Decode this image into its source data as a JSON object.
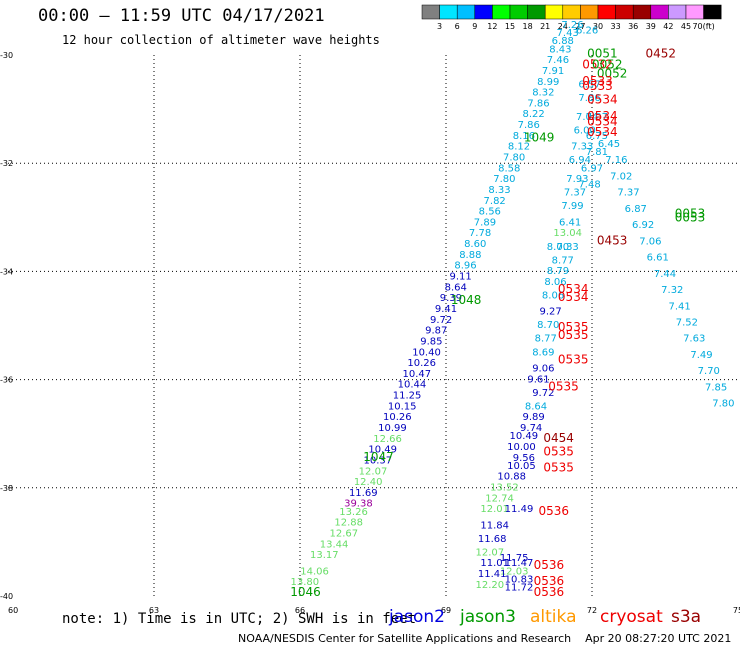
{
  "header": {
    "title": "00:00 – 11:59 UTC 04/17/2021",
    "subtitle": "12 hour collection of altimeter wave heights"
  },
  "colorbar": {
    "unit_label": "(ft)",
    "ticks": [
      "3",
      "6",
      "9",
      "12",
      "15",
      "18",
      "21",
      "24",
      "27",
      "30",
      "33",
      "36",
      "39",
      "42",
      "45",
      "70"
    ],
    "colors": [
      "#808080",
      "#00e5ff",
      "#00bfff",
      "#0000ff",
      "#00ff00",
      "#00cc00",
      "#009900",
      "#ffff00",
      "#ffcc00",
      "#ff9900",
      "#ff0000",
      "#cc0000",
      "#990000",
      "#cc00cc",
      "#cc99ff",
      "#ff99ff",
      "#000000"
    ]
  },
  "map": {
    "lon_range": [
      60,
      75
    ],
    "lat_range": [
      -40,
      -30
    ],
    "x_ticks": [
      "60",
      "63",
      "66",
      "69",
      "72",
      "75"
    ],
    "y_ticks": [
      "-30",
      "-32",
      "-34",
      "-36",
      "-38",
      "-40"
    ],
    "observations": [
      {
        "lon": 66.1,
        "lat": -39.8,
        "text": "13.80",
        "color": "#66dd66"
      },
      {
        "lon": 66.3,
        "lat": -39.6,
        "text": "14.06",
        "color": "#66dd66"
      },
      {
        "lon": 66.5,
        "lat": -39.3,
        "text": "13.17",
        "color": "#66dd66"
      },
      {
        "lon": 66.7,
        "lat": -39.1,
        "text": "13.44",
        "color": "#66dd66"
      },
      {
        "lon": 66.9,
        "lat": -38.9,
        "text": "12.67",
        "color": "#66dd66"
      },
      {
        "lon": 67.0,
        "lat": -38.7,
        "text": "12.88",
        "color": "#66dd66"
      },
      {
        "lon": 67.1,
        "lat": -38.5,
        "text": "13.26",
        "color": "#66dd66"
      },
      {
        "lon": 67.2,
        "lat": -38.35,
        "text": "39.38",
        "color": "#990099"
      },
      {
        "lon": 67.3,
        "lat": -38.15,
        "text": "11.69",
        "color": "#0000bb"
      },
      {
        "lon": 67.4,
        "lat": -37.95,
        "text": "12.40",
        "color": "#66dd66"
      },
      {
        "lon": 67.5,
        "lat": -37.75,
        "text": "12.07",
        "color": "#66dd66"
      },
      {
        "lon": 67.6,
        "lat": -37.55,
        "text": "10.37",
        "color": "#0000bb"
      },
      {
        "lon": 67.7,
        "lat": -37.35,
        "text": "10.49",
        "color": "#0000bb"
      },
      {
        "lon": 67.8,
        "lat": -37.15,
        "text": "12.66",
        "color": "#66dd66"
      },
      {
        "lon": 67.9,
        "lat": -36.95,
        "text": "10.99",
        "color": "#0000bb"
      },
      {
        "lon": 68.0,
        "lat": -36.75,
        "text": "10.26",
        "color": "#0000bb"
      },
      {
        "lon": 68.1,
        "lat": -36.55,
        "text": "10.15",
        "color": "#0000bb"
      },
      {
        "lon": 68.2,
        "lat": -36.35,
        "text": "11.25",
        "color": "#0000bb"
      },
      {
        "lon": 68.3,
        "lat": -36.15,
        "text": "10.44",
        "color": "#0000bb"
      },
      {
        "lon": 68.4,
        "lat": -35.95,
        "text": "10.47",
        "color": "#0000bb"
      },
      {
        "lon": 68.5,
        "lat": -35.75,
        "text": "10.26",
        "color": "#0000bb"
      },
      {
        "lon": 68.6,
        "lat": -35.55,
        "text": "10.40",
        "color": "#0000bb"
      },
      {
        "lon": 68.7,
        "lat": -35.35,
        "text": "9.85",
        "color": "#0000bb"
      },
      {
        "lon": 68.8,
        "lat": -35.15,
        "text": "9.87",
        "color": "#0000bb"
      },
      {
        "lon": 68.9,
        "lat": -34.95,
        "text": "9.72",
        "color": "#0000bb"
      },
      {
        "lon": 69.0,
        "lat": -34.75,
        "text": "9.41",
        "color": "#0000bb"
      },
      {
        "lon": 69.1,
        "lat": -34.55,
        "text": "9.39",
        "color": "#0000bb"
      },
      {
        "lon": 69.2,
        "lat": -34.35,
        "text": "8.64",
        "color": "#0000bb"
      },
      {
        "lon": 69.3,
        "lat": -34.15,
        "text": "9.11",
        "color": "#0000bb"
      },
      {
        "lon": 69.4,
        "lat": -33.95,
        "text": "8.96",
        "color": "#00aadd"
      },
      {
        "lon": 69.5,
        "lat": -33.75,
        "text": "8.88",
        "color": "#00aadd"
      },
      {
        "lon": 69.6,
        "lat": -33.55,
        "text": "8.60",
        "color": "#00aadd"
      },
      {
        "lon": 69.7,
        "lat": -33.35,
        "text": "7.78",
        "color": "#00aadd"
      },
      {
        "lon": 69.8,
        "lat": -33.15,
        "text": "7.89",
        "color": "#00aadd"
      },
      {
        "lon": 69.9,
        "lat": -32.95,
        "text": "8.56",
        "color": "#00aadd"
      },
      {
        "lon": 70.0,
        "lat": -32.75,
        "text": "7.82",
        "color": "#00aadd"
      },
      {
        "lon": 70.1,
        "lat": -32.55,
        "text": "8.33",
        "color": "#00aadd"
      },
      {
        "lon": 70.2,
        "lat": -32.35,
        "text": "7.80",
        "color": "#00aadd"
      },
      {
        "lon": 70.3,
        "lat": -32.15,
        "text": "8.58",
        "color": "#00aadd"
      },
      {
        "lon": 70.4,
        "lat": -31.95,
        "text": "7.80",
        "color": "#00aadd"
      },
      {
        "lon": 70.5,
        "lat": -31.75,
        "text": "8.12",
        "color": "#00aadd"
      },
      {
        "lon": 70.6,
        "lat": -31.55,
        "text": "8.16",
        "color": "#00aadd"
      },
      {
        "lon": 70.7,
        "lat": -31.35,
        "text": "7.86",
        "color": "#00aadd"
      },
      {
        "lon": 70.8,
        "lat": -31.15,
        "text": "8.22",
        "color": "#00aadd"
      },
      {
        "lon": 70.9,
        "lat": -30.95,
        "text": "7.86",
        "color": "#00aadd"
      },
      {
        "lon": 71.0,
        "lat": -30.75,
        "text": "8.32",
        "color": "#00aadd"
      },
      {
        "lon": 71.1,
        "lat": -30.55,
        "text": "8.99",
        "color": "#00aadd"
      },
      {
        "lon": 71.2,
        "lat": -30.35,
        "text": "7.91",
        "color": "#00aadd"
      },
      {
        "lon": 71.3,
        "lat": -30.15,
        "text": "7.46",
        "color": "#00aadd"
      },
      {
        "lon": 71.35,
        "lat": -29.95,
        "text": "8.43",
        "color": "#00aadd"
      },
      {
        "lon": 71.4,
        "lat": -29.8,
        "text": "6.88",
        "color": "#00aadd"
      },
      {
        "lon": 71.5,
        "lat": -29.65,
        "text": "7.43",
        "color": "#00aadd"
      },
      {
        "lon": 71.6,
        "lat": -29.5,
        "text": "7.26",
        "color": "#00aadd"
      },
      {
        "lon": 71.9,
        "lat": -29.6,
        "text": "6.26",
        "color": "#00aadd"
      },
      {
        "lon": 71.95,
        "lat": -30.6,
        "text": "6.57",
        "color": "#00aadd"
      },
      {
        "lon": 71.95,
        "lat": -30.85,
        "text": "7.86",
        "color": "#00aadd"
      },
      {
        "lon": 71.9,
        "lat": -31.2,
        "text": "7.04",
        "color": "#00aadd"
      },
      {
        "lon": 71.85,
        "lat": -31.45,
        "text": "6.00",
        "color": "#00aadd"
      },
      {
        "lon": 71.8,
        "lat": -31.75,
        "text": "7.33",
        "color": "#00aadd"
      },
      {
        "lon": 71.75,
        "lat": -32.0,
        "text": "6.94",
        "color": "#00aadd"
      },
      {
        "lon": 71.7,
        "lat": -32.35,
        "text": "7.93",
        "color": "#00aadd"
      },
      {
        "lon": 71.65,
        "lat": -32.6,
        "text": "7.37",
        "color": "#00aadd"
      },
      {
        "lon": 71.6,
        "lat": -32.85,
        "text": "7.99",
        "color": "#00aadd"
      },
      {
        "lon": 71.55,
        "lat": -33.15,
        "text": "6.41",
        "color": "#00aadd"
      },
      {
        "lon": 71.5,
        "lat": -33.35,
        "text": "13.04",
        "color": "#66dd66"
      },
      {
        "lon": 71.3,
        "lat": -33.6,
        "text": "8.00",
        "color": "#00aadd"
      },
      {
        "lon": 71.5,
        "lat": -33.6,
        "text": "7.33",
        "color": "#00aadd"
      },
      {
        "lon": 71.4,
        "lat": -33.85,
        "text": "8.77",
        "color": "#00aadd"
      },
      {
        "lon": 71.3,
        "lat": -34.05,
        "text": "8.79",
        "color": "#00aadd"
      },
      {
        "lon": 71.25,
        "lat": -34.25,
        "text": "8.06",
        "color": "#00aadd"
      },
      {
        "lon": 71.2,
        "lat": -34.5,
        "text": "8.06",
        "color": "#00aadd"
      },
      {
        "lon": 71.15,
        "lat": -34.8,
        "text": "9.27",
        "color": "#0000bb"
      },
      {
        "lon": 71.1,
        "lat": -35.05,
        "text": "8.70",
        "color": "#00aadd"
      },
      {
        "lon": 71.05,
        "lat": -35.3,
        "text": "8.77",
        "color": "#00aadd"
      },
      {
        "lon": 71.0,
        "lat": -35.55,
        "text": "8.69",
        "color": "#00aadd"
      },
      {
        "lon": 71.0,
        "lat": -35.85,
        "text": "9.06",
        "color": "#0000bb"
      },
      {
        "lon": 70.9,
        "lat": -36.05,
        "text": "9.61",
        "color": "#0000bb"
      },
      {
        "lon": 71.0,
        "lat": -36.3,
        "text": "9.72",
        "color": "#0000bb"
      },
      {
        "lon": 70.85,
        "lat": -36.55,
        "text": "8.64",
        "color": "#00aadd"
      },
      {
        "lon": 70.8,
        "lat": -36.75,
        "text": "9.89",
        "color": "#0000bb"
      },
      {
        "lon": 70.75,
        "lat": -36.95,
        "text": "9.74",
        "color": "#0000bb"
      },
      {
        "lon": 70.6,
        "lat": -37.1,
        "text": "10.49",
        "color": "#0000bb"
      },
      {
        "lon": 70.55,
        "lat": -37.3,
        "text": "10.00",
        "color": "#0000bb"
      },
      {
        "lon": 70.6,
        "lat": -37.5,
        "text": "9.56",
        "color": "#0000bb"
      },
      {
        "lon": 70.55,
        "lat": -37.65,
        "text": "10.05",
        "color": "#0000bb"
      },
      {
        "lon": 70.35,
        "lat": -37.85,
        "text": "10.88",
        "color": "#0000bb"
      },
      {
        "lon": 70.2,
        "lat": -38.05,
        "text": "13.52",
        "color": "#66dd66"
      },
      {
        "lon": 70.1,
        "lat": -38.25,
        "text": "12.74",
        "color": "#66dd66"
      },
      {
        "lon": 70.0,
        "lat": -38.45,
        "text": "12.01",
        "color": "#66dd66"
      },
      {
        "lon": 70.5,
        "lat": -38.45,
        "text": "11.49",
        "color": "#0000bb"
      },
      {
        "lon": 70.0,
        "lat": -38.75,
        "text": "11.84",
        "color": "#0000bb"
      },
      {
        "lon": 69.95,
        "lat": -39.0,
        "text": "11.68",
        "color": "#0000bb"
      },
      {
        "lon": 69.9,
        "lat": -39.25,
        "text": "12.07",
        "color": "#66dd66"
      },
      {
        "lon": 70.4,
        "lat": -39.35,
        "text": "11.75",
        "color": "#0000bb"
      },
      {
        "lon": 70.0,
        "lat": -39.45,
        "text": "11.01",
        "color": "#0000bb"
      },
      {
        "lon": 70.5,
        "lat": -39.45,
        "text": "11.47",
        "color": "#0000bb"
      },
      {
        "lon": 70.4,
        "lat": -39.6,
        "text": "12.03",
        "color": "#66dd66"
      },
      {
        "lon": 69.95,
        "lat": -39.65,
        "text": "11.41",
        "color": "#0000bb"
      },
      {
        "lon": 70.5,
        "lat": -39.75,
        "text": "10.83",
        "color": "#0000bb"
      },
      {
        "lon": 69.9,
        "lat": -39.85,
        "text": "12.20",
        "color": "#66dd66"
      },
      {
        "lon": 70.5,
        "lat": -39.9,
        "text": "11.72",
        "color": "#0000bb"
      },
      {
        "lon": 72.1,
        "lat": -31.2,
        "text": "7.07",
        "color": "#00aadd"
      },
      {
        "lon": 72.1,
        "lat": -31.55,
        "text": "6.75",
        "color": "#00aadd"
      },
      {
        "lon": 72.1,
        "lat": -31.85,
        "text": "7.81",
        "color": "#00aadd"
      },
      {
        "lon": 72.0,
        "lat": -32.15,
        "text": "6.97",
        "color": "#00aadd"
      },
      {
        "lon": 71.95,
        "lat": -32.45,
        "text": "7.48",
        "color": "#00aadd"
      },
      {
        "lon": 72.35,
        "lat": -31.7,
        "text": "6.45",
        "color": "#00aadd"
      },
      {
        "lon": 72.5,
        "lat": -32.0,
        "text": "7.16",
        "color": "#00aadd"
      },
      {
        "lon": 72.6,
        "lat": -32.3,
        "text": "7.02",
        "color": "#00aadd"
      },
      {
        "lon": 72.75,
        "lat": -32.6,
        "text": "7.37",
        "color": "#00aadd"
      },
      {
        "lon": 72.9,
        "lat": -32.9,
        "text": "6.87",
        "color": "#00aadd"
      },
      {
        "lon": 73.05,
        "lat": -33.2,
        "text": "6.92",
        "color": "#00aadd"
      },
      {
        "lon": 73.2,
        "lat": -33.5,
        "text": "7.06",
        "color": "#00aadd"
      },
      {
        "lon": 73.35,
        "lat": -33.8,
        "text": "6.61",
        "color": "#00aadd"
      },
      {
        "lon": 73.5,
        "lat": -34.1,
        "text": "7.44",
        "color": "#00aadd"
      },
      {
        "lon": 73.65,
        "lat": -34.4,
        "text": "7.32",
        "color": "#00aadd"
      },
      {
        "lon": 73.8,
        "lat": -34.7,
        "text": "7.41",
        "color": "#00aadd"
      },
      {
        "lon": 73.95,
        "lat": -35.0,
        "text": "7.52",
        "color": "#00aadd"
      },
      {
        "lon": 74.1,
        "lat": -35.3,
        "text": "7.63",
        "color": "#00aadd"
      },
      {
        "lon": 74.25,
        "lat": -35.6,
        "text": "7.49",
        "color": "#00aadd"
      },
      {
        "lon": 74.4,
        "lat": -35.9,
        "text": "7.70",
        "color": "#00aadd"
      },
      {
        "lon": 74.55,
        "lat": -36.2,
        "text": "7.85",
        "color": "#00aadd"
      },
      {
        "lon": 74.7,
        "lat": -36.5,
        "text": "7.80",
        "color": "#00aadd"
      }
    ],
    "passes": [
      {
        "lon": 71.9,
        "lat": -30.05,
        "text": "0051",
        "color": "#009900"
      },
      {
        "lon": 73.1,
        "lat": -30.05,
        "text": "0452",
        "color": "#990000"
      },
      {
        "lon": 71.8,
        "lat": -30.25,
        "text": "0532",
        "color": "#ee0000"
      },
      {
        "lon": 72.0,
        "lat": -30.25,
        "text": "0052",
        "color": "#009900"
      },
      {
        "lon": 72.1,
        "lat": -30.42,
        "text": "0052",
        "color": "#009900"
      },
      {
        "lon": 71.8,
        "lat": -30.55,
        "text": "0533",
        "color": "#ee0000"
      },
      {
        "lon": 71.8,
        "lat": -30.65,
        "text": "0533",
        "color": "#ee0000"
      },
      {
        "lon": 71.9,
        "lat": -30.9,
        "text": "0534",
        "color": "#ee0000"
      },
      {
        "lon": 71.9,
        "lat": -31.2,
        "text": "0534",
        "color": "#ee0000"
      },
      {
        "lon": 71.9,
        "lat": -31.3,
        "text": "0534",
        "color": "#ee0000"
      },
      {
        "lon": 71.9,
        "lat": -31.5,
        "text": "0534",
        "color": "#ee0000"
      },
      {
        "lon": 70.6,
        "lat": -31.6,
        "text": "1049",
        "color": "#009900"
      },
      {
        "lon": 73.7,
        "lat": -33.0,
        "text": "0053",
        "color": "#009900"
      },
      {
        "lon": 73.7,
        "lat": -33.08,
        "text": "0053",
        "color": "#009900"
      },
      {
        "lon": 72.1,
        "lat": -33.5,
        "text": "0453",
        "color": "#990000"
      },
      {
        "lon": 71.3,
        "lat": -34.4,
        "text": "0534",
        "color": "#ee0000"
      },
      {
        "lon": 71.3,
        "lat": -34.55,
        "text": "0534",
        "color": "#ee0000"
      },
      {
        "lon": 69.1,
        "lat": -34.6,
        "text": "1048",
        "color": "#009900"
      },
      {
        "lon": 71.3,
        "lat": -35.1,
        "text": "0535",
        "color": "#ee0000"
      },
      {
        "lon": 71.3,
        "lat": -35.25,
        "text": "0535",
        "color": "#ee0000"
      },
      {
        "lon": 71.3,
        "lat": -35.7,
        "text": "0535",
        "color": "#ee0000"
      },
      {
        "lon": 71.1,
        "lat": -36.2,
        "text": "0535",
        "color": "#ee0000"
      },
      {
        "lon": 71.0,
        "lat": -37.15,
        "text": "0454",
        "color": "#990000"
      },
      {
        "lon": 71.0,
        "lat": -37.4,
        "text": "0535",
        "color": "#ee0000"
      },
      {
        "lon": 71.0,
        "lat": -37.7,
        "text": "0535",
        "color": "#ee0000"
      },
      {
        "lon": 67.3,
        "lat": -37.5,
        "text": "1047",
        "color": "#009900"
      },
      {
        "lon": 70.9,
        "lat": -38.5,
        "text": "0536",
        "color": "#ee0000"
      },
      {
        "lon": 70.8,
        "lat": -39.5,
        "text": "0536",
        "color": "#ee0000"
      },
      {
        "lon": 70.8,
        "lat": -39.8,
        "text": "0536",
        "color": "#ee0000"
      },
      {
        "lon": 70.8,
        "lat": -40.0,
        "text": "0536",
        "color": "#ee0000"
      },
      {
        "lon": 65.8,
        "lat": -40.0,
        "text": "1046",
        "color": "#009900"
      }
    ]
  },
  "note": "note: 1) Time is in UTC; 2) SWH is in feet",
  "missions": [
    {
      "name": "jason2",
      "color": "#0000dd"
    },
    {
      "name": "jason3",
      "color": "#009900"
    },
    {
      "name": "altika",
      "color": "#ff9900"
    },
    {
      "name": "cryosat",
      "color": "#ee0000"
    },
    {
      "name": "s3a",
      "color": "#990000"
    }
  ],
  "footer": "NOAA/NESDIS Center for Satellite Applications and Research    Apr 20 08:27:20 UTC 2021"
}
